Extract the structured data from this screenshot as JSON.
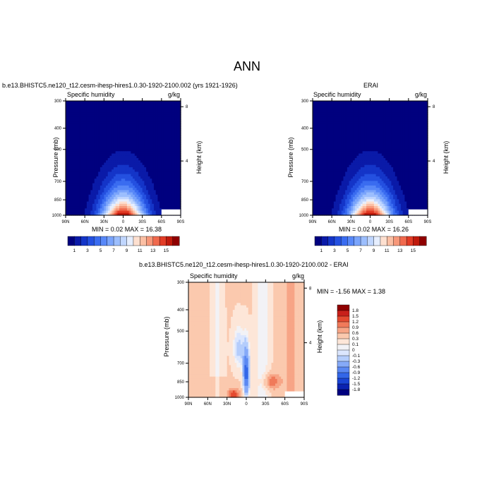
{
  "title": "ANN",
  "palettes": {
    "humidity": [
      "#00007f",
      "#0a1aa8",
      "#1435c8",
      "#2450e0",
      "#3a6cf0",
      "#5888f8",
      "#7aa4fb",
      "#9cbefd",
      "#c0d6fe",
      "#e6eefe",
      "#fde0d0",
      "#fbbfa4",
      "#f7987a",
      "#f06a4e",
      "#e23c26",
      "#c01a0c",
      "#8f0000"
    ],
    "diff": [
      "#00007f",
      "#0a22b0",
      "#1a44d4",
      "#3366e8",
      "#5a88f2",
      "#86aaf8",
      "#b4cdfc",
      "#dbe6fe",
      "#f2f2f6",
      "#fde6d8",
      "#fbc9ae",
      "#f7a586",
      "#f07a5a",
      "#e44a30",
      "#c8201a",
      "#8f0000"
    ]
  },
  "panels": [
    {
      "id": "model",
      "title": "b.e13.BHISTC5.ne120_t12.cesm-ihesp-hires1.0.30-1920-2100.002 (yrs 1921-1926)",
      "left_string": "Specific humidity",
      "right_string": "g/kg",
      "min_max": "MIN =  0.02  MAX =  16.38",
      "ylabel_left": "Pressure (mb)",
      "ylabel_right": "Height (km)"
    },
    {
      "id": "obs",
      "title": "ERAI",
      "left_string": "Specific humidity",
      "right_string": "g/kg",
      "min_max": "MIN =  0.02  MAX =  16.26",
      "ylabel_left": "Pressure (mb)",
      "ylabel_right": "Height (km)"
    },
    {
      "id": "diff",
      "title": "b.e13.BHISTC5.ne120_t12.cesm-ihesp-hires1.0.30-1920-2100.002 - ERAI",
      "left_string": "Specific humidity",
      "right_string": "g/kg",
      "min_max": "MIN =  -1.56  MAX =   1.38",
      "ylabel_left": "Pressure (mb)",
      "ylabel_right": "Height (km)"
    }
  ],
  "chart_data": [
    {
      "type": "heatmap",
      "title": "b.e13.BHISTC5.ne120_t12.cesm-ihesp-hires1.0.30-1920-2100.002 (yrs 1921-1926)",
      "variable": "Specific humidity",
      "units": "g/kg",
      "x_ticks": [
        "90N",
        "60N",
        "30N",
        "0",
        "30S",
        "60S",
        "90S"
      ],
      "x_range": [
        90,
        -90
      ],
      "y_ticks_pressure": [
        300,
        400,
        500,
        700,
        850,
        1000
      ],
      "y_range_pressure": [
        1000,
        300
      ],
      "y_ticks_height_km": [
        4,
        8
      ],
      "y_scale": "log",
      "colorbar_levels": [
        1,
        2,
        3,
        4,
        5,
        6,
        7,
        8,
        9,
        10,
        11,
        12,
        13,
        14,
        15
      ],
      "colorbar_labels": [
        "1",
        "3",
        "5",
        "7",
        "9",
        "11",
        "13",
        "15"
      ],
      "min": 0.02,
      "max": 16.38
    },
    {
      "type": "heatmap",
      "title": "ERAI",
      "variable": "Specific humidity",
      "units": "g/kg",
      "x_ticks": [
        "90N",
        "60N",
        "30N",
        "0",
        "30S",
        "60S",
        "90S"
      ],
      "x_range": [
        90,
        -90
      ],
      "y_ticks_pressure": [
        300,
        400,
        500,
        700,
        850,
        1000
      ],
      "y_range_pressure": [
        1000,
        300
      ],
      "y_ticks_height_km": [
        4,
        8
      ],
      "y_scale": "log",
      "colorbar_levels": [
        1,
        2,
        3,
        4,
        5,
        6,
        7,
        8,
        9,
        10,
        11,
        12,
        13,
        14,
        15
      ],
      "colorbar_labels": [
        "1",
        "3",
        "5",
        "7",
        "9",
        "11",
        "13",
        "15"
      ],
      "min": 0.02,
      "max": 16.26
    },
    {
      "type": "heatmap",
      "title": "b.e13.BHISTC5.ne120_t12.cesm-ihesp-hires1.0.30-1920-2100.002 - ERAI",
      "variable": "Specific humidity",
      "units": "g/kg",
      "x_ticks": [
        "90N",
        "60N",
        "30N",
        "0",
        "30S",
        "60S",
        "90S"
      ],
      "x_range": [
        90,
        -90
      ],
      "y_ticks_pressure": [
        300,
        400,
        500,
        700,
        850,
        1000
      ],
      "y_range_pressure": [
        1000,
        300
      ],
      "y_ticks_height_km": [
        4,
        8
      ],
      "y_scale": "log",
      "colorbar_levels": [
        -1.8,
        -1.5,
        -1.2,
        -0.9,
        -0.6,
        -0.3,
        -0.1,
        0,
        0.1,
        0.3,
        0.6,
        0.9,
        1.2,
        1.5,
        1.8
      ],
      "colorbar_labels": [
        "1.8",
        "1.5",
        "1.2",
        "0.9",
        "0.6",
        "0.3",
        "0.1",
        "0",
        "-0.1",
        "-0.3",
        "-0.6",
        "-0.9",
        "-1.2",
        "-1.5",
        "-1.8"
      ],
      "min": -1.56,
      "max": 1.38
    }
  ]
}
